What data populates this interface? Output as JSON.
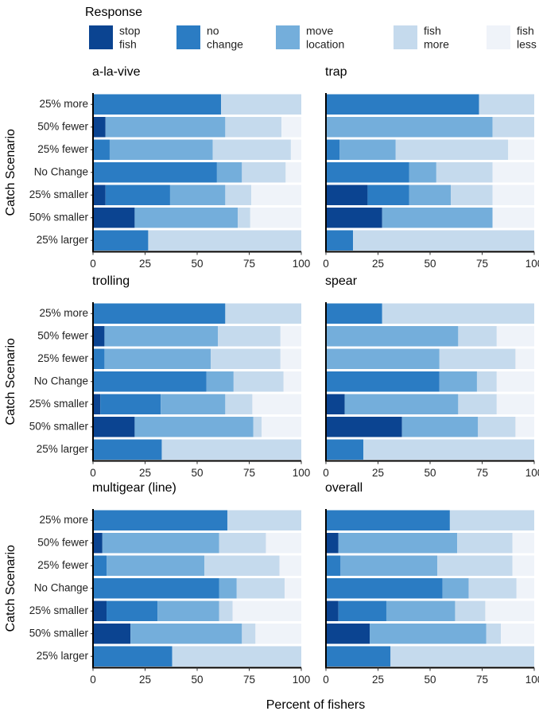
{
  "chart_data": {
    "type": "bar",
    "orientation": "horizontal",
    "stacked": true,
    "xlabel": "Percent of fishers",
    "ylabel": "Catch Scenario",
    "xlim": [
      0,
      100
    ],
    "xticks": [
      0,
      25,
      50,
      75,
      100
    ],
    "legend": {
      "title": "Response",
      "position": "top",
      "entries": [
        {
          "key": "stop_fish",
          "lines": [
            "stop",
            "fish"
          ],
          "color": "#0b4491"
        },
        {
          "key": "no_change",
          "lines": [
            "no",
            "change"
          ],
          "color": "#2b7cc3"
        },
        {
          "key": "move_location",
          "lines": [
            "move",
            "location"
          ],
          "color": "#74aedb"
        },
        {
          "key": "fish_more",
          "lines": [
            "fish",
            "more"
          ],
          "color": "#c5daed"
        },
        {
          "key": "fish_less",
          "lines": [
            "fish",
            "less"
          ],
          "color": "#eff3f9"
        }
      ]
    },
    "categories": [
      "25% more",
      "50% fewer",
      "25% fewer",
      "No Change",
      "25% smaller",
      "50% smaller",
      "25% larger"
    ],
    "panels": [
      {
        "title": "a-la-vive",
        "bars": [
          {
            "stop_fish": 0,
            "no_change": 61.5,
            "move_location": 0,
            "fish_more": 38.5,
            "fish_less": 0
          },
          {
            "stop_fish": 6,
            "no_change": 0,
            "move_location": 57.5,
            "fish_more": 27,
            "fish_less": 9.5
          },
          {
            "stop_fish": 0,
            "no_change": 8,
            "move_location": 49.5,
            "fish_more": 37.5,
            "fish_less": 5
          },
          {
            "stop_fish": 0,
            "no_change": 59.5,
            "move_location": 12,
            "fish_more": 21,
            "fish_less": 7.5
          },
          {
            "stop_fish": 6,
            "no_change": 31,
            "move_location": 26.5,
            "fish_more": 12.5,
            "fish_less": 24
          },
          {
            "stop_fish": 20,
            "no_change": 0,
            "move_location": 49.5,
            "fish_more": 6,
            "fish_less": 24.5
          },
          {
            "stop_fish": 0,
            "no_change": 26.5,
            "move_location": 0,
            "fish_more": 73.5,
            "fish_less": 0
          }
        ]
      },
      {
        "title": "trap",
        "bars": [
          {
            "stop_fish": 0,
            "no_change": 73.5,
            "move_location": 0,
            "fish_more": 26.5,
            "fish_less": 0
          },
          {
            "stop_fish": 0,
            "no_change": 0,
            "move_location": 80,
            "fish_more": 20,
            "fish_less": 0
          },
          {
            "stop_fish": 0,
            "no_change": 6.5,
            "move_location": 27,
            "fish_more": 54,
            "fish_less": 12.5
          },
          {
            "stop_fish": 0,
            "no_change": 40,
            "move_location": 13,
            "fish_more": 27,
            "fish_less": 20
          },
          {
            "stop_fish": 20,
            "no_change": 20,
            "move_location": 20,
            "fish_more": 20,
            "fish_less": 20
          },
          {
            "stop_fish": 27,
            "no_change": 0,
            "move_location": 53,
            "fish_more": 0,
            "fish_less": 20
          },
          {
            "stop_fish": 0,
            "no_change": 13,
            "move_location": 0,
            "fish_more": 87,
            "fish_less": 0
          }
        ]
      },
      {
        "title": "trolling",
        "bars": [
          {
            "stop_fish": 0,
            "no_change": 63.5,
            "move_location": 0,
            "fish_more": 36.5,
            "fish_less": 0
          },
          {
            "stop_fish": 5.5,
            "no_change": 0,
            "move_location": 54.5,
            "fish_more": 30,
            "fish_less": 10
          },
          {
            "stop_fish": 0,
            "no_change": 5.5,
            "move_location": 51,
            "fish_more": 33.5,
            "fish_less": 10
          },
          {
            "stop_fish": 0,
            "no_change": 54.5,
            "move_location": 13,
            "fish_more": 24,
            "fish_less": 8.5
          },
          {
            "stop_fish": 3.5,
            "no_change": 29,
            "move_location": 31,
            "fish_more": 13,
            "fish_less": 23.5
          },
          {
            "stop_fish": 20,
            "no_change": 0,
            "move_location": 57,
            "fish_more": 4,
            "fish_less": 19
          },
          {
            "stop_fish": 0,
            "no_change": 33,
            "move_location": 0,
            "fish_more": 67,
            "fish_less": 0
          }
        ]
      },
      {
        "title": "spear",
        "bars": [
          {
            "stop_fish": 0,
            "no_change": 27,
            "move_location": 0,
            "fish_more": 73,
            "fish_less": 0
          },
          {
            "stop_fish": 0,
            "no_change": 0,
            "move_location": 63.5,
            "fish_more": 18.5,
            "fish_less": 18
          },
          {
            "stop_fish": 0,
            "no_change": 0,
            "move_location": 54.5,
            "fish_more": 36.5,
            "fish_less": 9
          },
          {
            "stop_fish": 0,
            "no_change": 54.5,
            "move_location": 18,
            "fish_more": 9.5,
            "fish_less": 18
          },
          {
            "stop_fish": 9,
            "no_change": 0,
            "move_location": 54.5,
            "fish_more": 18.5,
            "fish_less": 18
          },
          {
            "stop_fish": 36.5,
            "no_change": 0,
            "move_location": 36.5,
            "fish_more": 18,
            "fish_less": 9
          },
          {
            "stop_fish": 0,
            "no_change": 18,
            "move_location": 0,
            "fish_more": 82,
            "fish_less": 0
          }
        ]
      },
      {
        "title": "multigear (line)",
        "bars": [
          {
            "stop_fish": 0,
            "no_change": 64.5,
            "move_location": 0,
            "fish_more": 35.5,
            "fish_less": 0
          },
          {
            "stop_fish": 4.5,
            "no_change": 0,
            "move_location": 56,
            "fish_more": 22.5,
            "fish_less": 17
          },
          {
            "stop_fish": 0,
            "no_change": 6.5,
            "move_location": 47,
            "fish_more": 36,
            "fish_less": 10.5
          },
          {
            "stop_fish": 0,
            "no_change": 60.5,
            "move_location": 8.5,
            "fish_more": 23,
            "fish_less": 8
          },
          {
            "stop_fish": 6.5,
            "no_change": 24.5,
            "move_location": 29.5,
            "fish_more": 6.5,
            "fish_less": 33
          },
          {
            "stop_fish": 18,
            "no_change": 0,
            "move_location": 53.5,
            "fish_more": 6.5,
            "fish_less": 22
          },
          {
            "stop_fish": 0,
            "no_change": 38,
            "move_location": 0,
            "fish_more": 62,
            "fish_less": 0
          }
        ]
      },
      {
        "title": "overall",
        "bars": [
          {
            "stop_fish": 0,
            "no_change": 59.5,
            "move_location": 0,
            "fish_more": 40.5,
            "fish_less": 0
          },
          {
            "stop_fish": 6,
            "no_change": 0,
            "move_location": 57,
            "fish_more": 26.5,
            "fish_less": 10.5
          },
          {
            "stop_fish": 0,
            "no_change": 7,
            "move_location": 46.5,
            "fish_more": 36,
            "fish_less": 10.5
          },
          {
            "stop_fish": 0,
            "no_change": 56,
            "move_location": 12.5,
            "fish_more": 23,
            "fish_less": 8.5
          },
          {
            "stop_fish": 6,
            "no_change": 23,
            "move_location": 33,
            "fish_more": 14.5,
            "fish_less": 23.5
          },
          {
            "stop_fish": 21,
            "no_change": 0,
            "move_location": 56,
            "fish_more": 7,
            "fish_less": 16
          },
          {
            "stop_fish": 0,
            "no_change": 31,
            "move_location": 0,
            "fish_more": 69,
            "fish_less": 0
          }
        ]
      }
    ]
  }
}
